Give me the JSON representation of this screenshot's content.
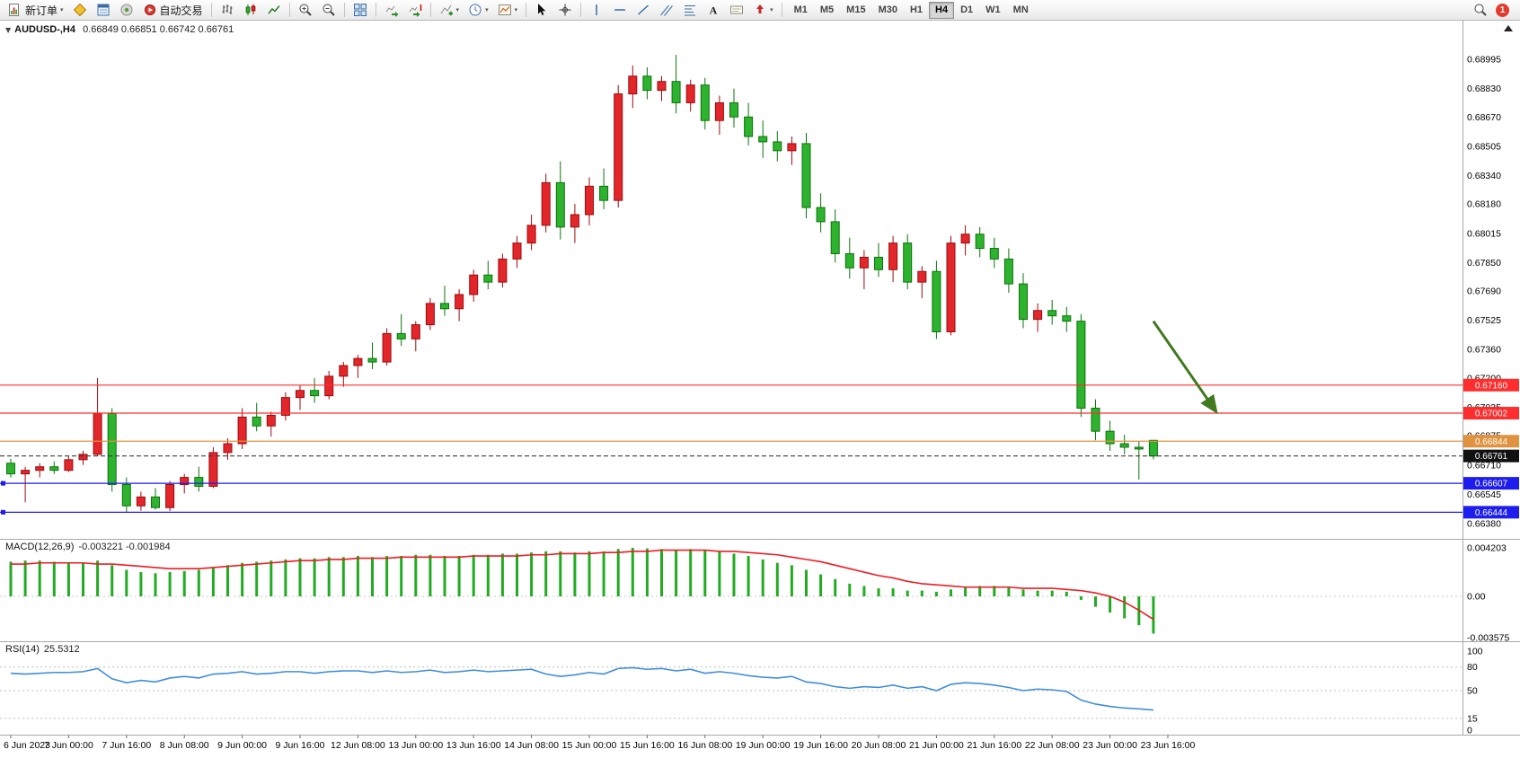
{
  "window": {
    "notification_count": "1"
  },
  "toolbar": {
    "new_order_label": "新订单",
    "auto_trading_label": "自动交易",
    "timeframes": [
      "M1",
      "M5",
      "M15",
      "M30",
      "H1",
      "H4",
      "D1",
      "W1",
      "MN"
    ],
    "active_timeframe": "H4",
    "icons": [
      "new-order",
      "market-watch",
      "data-window",
      "navigator",
      "auto-trading",
      "bars-chart",
      "candlestick-chart",
      "line-chart",
      "zoom-in",
      "zoom-out",
      "tile-windows",
      "auto-scroll",
      "chart-shift",
      "indicators",
      "periods",
      "templates",
      "cursor",
      "crosshair",
      "vertical-line",
      "horizontal-line",
      "trendline",
      "equidistant-channel",
      "fibonacci",
      "text",
      "text-label",
      "arrows",
      "search"
    ]
  },
  "chart_header": {
    "symbol": "AUDUSD-,H4",
    "ohlc": "0.66849 0.66851 0.66742 0.66761"
  },
  "chart_data": {
    "type": "candlestick",
    "symbol": "AUDUSD-",
    "timeframe": "H4",
    "colors": {
      "bull": "#e3262a",
      "bull_border": "#9c0b0e",
      "bear": "#2db32d",
      "bear_border": "#0d730d",
      "macd_hist": "#22ab22",
      "macd_signal": "#ee1c25",
      "rsi_line": "#3f8edc",
      "arrow": "#3f7a1e"
    },
    "x_labels": [
      "6 Jun 2023",
      "7 Jun 00:00",
      "7 Jun 16:00",
      "8 Jun 08:00",
      "9 Jun 00:00",
      "9 Jun 16:00",
      "12 Jun 08:00",
      "13 Jun 00:00",
      "13 Jun 16:00",
      "14 Jun 08:00",
      "15 Jun 00:00",
      "15 Jun 16:00",
      "16 Jun 08:00",
      "19 Jun 00:00",
      "19 Jun 16:00",
      "20 Jun 08:00",
      "21 Jun 00:00",
      "21 Jun 16:00",
      "22 Jun 08:00",
      "23 Jun 00:00",
      "23 Jun 16:00"
    ],
    "bars_per_label": 4,
    "price_axis_labels": [
      "0.68995",
      "0.68830",
      "0.68670",
      "0.68505",
      "0.68340",
      "0.68180",
      "0.68015",
      "0.67850",
      "0.67690",
      "0.67525",
      "0.67360",
      "0.67200",
      "0.67035",
      "0.66875",
      "0.66710",
      "0.66545",
      "0.66380"
    ],
    "candles": [
      [
        0.6672,
        0.66745,
        0.6664,
        0.6666
      ],
      [
        0.6666,
        0.667,
        0.665,
        0.6668
      ],
      [
        0.6668,
        0.6672,
        0.6664,
        0.667
      ],
      [
        0.667,
        0.6673,
        0.6666,
        0.6668
      ],
      [
        0.6668,
        0.6676,
        0.6667,
        0.6674
      ],
      [
        0.6674,
        0.6679,
        0.6671,
        0.6677
      ],
      [
        0.6677,
        0.672,
        0.6676,
        0.67
      ],
      [
        0.67,
        0.6703,
        0.6656,
        0.666
      ],
      [
        0.666,
        0.6664,
        0.66444,
        0.6648
      ],
      [
        0.6648,
        0.6656,
        0.66452,
        0.6653
      ],
      [
        0.6653,
        0.6658,
        0.66458,
        0.6647
      ],
      [
        0.6647,
        0.6662,
        0.6645,
        0.666
      ],
      [
        0.666,
        0.6666,
        0.6655,
        0.6664
      ],
      [
        0.6664,
        0.667,
        0.6656,
        0.6659
      ],
      [
        0.6659,
        0.6681,
        0.6658,
        0.6678
      ],
      [
        0.6678,
        0.6686,
        0.6674,
        0.6683
      ],
      [
        0.6683,
        0.6703,
        0.668,
        0.6698
      ],
      [
        0.6698,
        0.6706,
        0.669,
        0.6693
      ],
      [
        0.6693,
        0.6701,
        0.6687,
        0.6699
      ],
      [
        0.6699,
        0.6712,
        0.6696,
        0.6709
      ],
      [
        0.6709,
        0.6716,
        0.6702,
        0.6713
      ],
      [
        0.6713,
        0.672,
        0.6706,
        0.671
      ],
      [
        0.671,
        0.6724,
        0.6708,
        0.6721
      ],
      [
        0.6721,
        0.6729,
        0.6715,
        0.6727
      ],
      [
        0.6727,
        0.6733,
        0.672,
        0.6731
      ],
      [
        0.6731,
        0.674,
        0.6725,
        0.6729
      ],
      [
        0.6729,
        0.6748,
        0.6727,
        0.6745
      ],
      [
        0.6745,
        0.6756,
        0.6738,
        0.6742
      ],
      [
        0.6742,
        0.6752,
        0.6735,
        0.675
      ],
      [
        0.675,
        0.6765,
        0.6747,
        0.6762
      ],
      [
        0.6762,
        0.6772,
        0.6755,
        0.6759
      ],
      [
        0.6759,
        0.677,
        0.6752,
        0.6767
      ],
      [
        0.6767,
        0.6781,
        0.6763,
        0.6778
      ],
      [
        0.6778,
        0.6786,
        0.677,
        0.6774
      ],
      [
        0.6774,
        0.679,
        0.6771,
        0.6787
      ],
      [
        0.6787,
        0.68,
        0.6782,
        0.6796
      ],
      [
        0.6796,
        0.6812,
        0.6792,
        0.6806
      ],
      [
        0.6806,
        0.6835,
        0.6802,
        0.683
      ],
      [
        0.683,
        0.6842,
        0.6798,
        0.6805
      ],
      [
        0.6805,
        0.6818,
        0.6796,
        0.6812
      ],
      [
        0.6812,
        0.6833,
        0.6806,
        0.6828
      ],
      [
        0.6828,
        0.6838,
        0.6815,
        0.682
      ],
      [
        0.682,
        0.6885,
        0.6816,
        0.688
      ],
      [
        0.688,
        0.6896,
        0.6872,
        0.689
      ],
      [
        0.689,
        0.6895,
        0.6877,
        0.6882
      ],
      [
        0.6882,
        0.689,
        0.6876,
        0.6887
      ],
      [
        0.6887,
        0.6902,
        0.6869,
        0.6875
      ],
      [
        0.6875,
        0.6888,
        0.687,
        0.6885
      ],
      [
        0.6885,
        0.6889,
        0.686,
        0.6865
      ],
      [
        0.6865,
        0.6879,
        0.6857,
        0.6875
      ],
      [
        0.6875,
        0.6883,
        0.6861,
        0.6867
      ],
      [
        0.6867,
        0.6875,
        0.6851,
        0.6856
      ],
      [
        0.6856,
        0.6865,
        0.6844,
        0.6853
      ],
      [
        0.6853,
        0.6859,
        0.6842,
        0.6848
      ],
      [
        0.6848,
        0.6856,
        0.684,
        0.6852
      ],
      [
        0.6852,
        0.6858,
        0.681,
        0.6816
      ],
      [
        0.6816,
        0.6824,
        0.6802,
        0.6808
      ],
      [
        0.6808,
        0.6815,
        0.6785,
        0.679
      ],
      [
        0.679,
        0.6799,
        0.6776,
        0.6782
      ],
      [
        0.6782,
        0.6792,
        0.677,
        0.6788
      ],
      [
        0.6788,
        0.6796,
        0.6777,
        0.6781
      ],
      [
        0.6781,
        0.68,
        0.6774,
        0.6796
      ],
      [
        0.6796,
        0.6801,
        0.677,
        0.6774
      ],
      [
        0.6774,
        0.6783,
        0.6765,
        0.678
      ],
      [
        0.678,
        0.6786,
        0.6742,
        0.6746
      ],
      [
        0.6746,
        0.68,
        0.6744,
        0.6796
      ],
      [
        0.6796,
        0.6806,
        0.6789,
        0.6801
      ],
      [
        0.6801,
        0.6805,
        0.6788,
        0.6793
      ],
      [
        0.6793,
        0.6799,
        0.6782,
        0.6787
      ],
      [
        0.6787,
        0.6793,
        0.6768,
        0.6773
      ],
      [
        0.6773,
        0.6779,
        0.6748,
        0.6753
      ],
      [
        0.6753,
        0.6762,
        0.6746,
        0.6758
      ],
      [
        0.6758,
        0.6764,
        0.675,
        0.6755
      ],
      [
        0.6755,
        0.676,
        0.6746,
        0.6752
      ],
      [
        0.6752,
        0.6756,
        0.6698,
        0.6703
      ],
      [
        0.6703,
        0.6708,
        0.6685,
        0.669
      ],
      [
        0.669,
        0.6696,
        0.6679,
        0.6683
      ],
      [
        0.6683,
        0.6688,
        0.6677,
        0.6681
      ],
      [
        0.6681,
        0.66845,
        0.66628,
        0.668
      ],
      [
        0.66849,
        0.66851,
        0.66742,
        0.66761
      ]
    ],
    "hlines": [
      {
        "price": 0.6716,
        "label": "0.67160",
        "color": "#ff2d2d",
        "style": "solid"
      },
      {
        "price": 0.67002,
        "label": "0.67002",
        "color": "#ff2d2d",
        "style": "solid"
      },
      {
        "price": 0.66844,
        "label": "0.66844",
        "color": "#e0923f",
        "style": "solid"
      },
      {
        "price": 0.66761,
        "label": "0.66761",
        "color": "#3c3c3c",
        "style": "dashed",
        "badge": "#111111",
        "role": "current-price"
      },
      {
        "price": 0.66607,
        "label": "0.66607",
        "color": "#1d1df0",
        "style": "solid",
        "handle": true
      },
      {
        "price": 0.66444,
        "label": "0.66444",
        "color": "#1d1df0",
        "style": "solid",
        "handle": true
      }
    ],
    "arrow": {
      "from": {
        "bar": 79,
        "price": 0.6752
      },
      "to": {
        "bar": 83.3,
        "price": 0.67015
      }
    },
    "macd": {
      "name": "MACD(12,26,9)",
      "values_text": "-0.003221 -0.001984",
      "axis_labels": [
        "0.004203",
        "0.00",
        "-0.003575"
      ],
      "histogram": [
        0.003,
        0.0031,
        0.0031,
        0.003,
        0.0029,
        0.0029,
        0.0031,
        0.0027,
        0.0023,
        0.0021,
        0.002,
        0.0021,
        0.0022,
        0.0023,
        0.0025,
        0.0027,
        0.0029,
        0.003,
        0.0031,
        0.0032,
        0.0033,
        0.0033,
        0.0034,
        0.0034,
        0.0035,
        0.0034,
        0.0035,
        0.0035,
        0.0036,
        0.0036,
        0.0035,
        0.0035,
        0.0036,
        0.0036,
        0.0037,
        0.0037,
        0.0038,
        0.0039,
        0.0039,
        0.0038,
        0.0039,
        0.0039,
        0.0041,
        0.0042,
        0.00415,
        0.0041,
        0.004,
        0.0041,
        0.004,
        0.0039,
        0.0037,
        0.0035,
        0.0032,
        0.0029,
        0.0027,
        0.0023,
        0.0019,
        0.0015,
        0.0011,
        0.0009,
        0.0007,
        0.0007,
        0.0005,
        0.0005,
        0.0004,
        0.0006,
        0.0008,
        0.0009,
        0.0009,
        0.0008,
        0.0006,
        0.0005,
        0.0005,
        0.0004,
        -0.0003,
        -0.0009,
        -0.0014,
        -0.0019,
        -0.0025,
        -0.003221
      ],
      "signal": [
        0.0028,
        0.0028,
        0.0029,
        0.0029,
        0.0029,
        0.0029,
        0.0028,
        0.0028,
        0.0027,
        0.0026,
        0.0025,
        0.0024,
        0.0024,
        0.0024,
        0.0025,
        0.0026,
        0.0027,
        0.0028,
        0.0029,
        0.003,
        0.0031,
        0.0031,
        0.0032,
        0.0032,
        0.0033,
        0.0033,
        0.0033,
        0.0034,
        0.0034,
        0.0034,
        0.0034,
        0.0034,
        0.0035,
        0.0035,
        0.0035,
        0.0035,
        0.0036,
        0.0036,
        0.0037,
        0.0037,
        0.0037,
        0.0038,
        0.0038,
        0.0039,
        0.0039,
        0.004,
        0.004,
        0.004,
        0.004,
        0.0039,
        0.0039,
        0.0038,
        0.0037,
        0.0036,
        0.0034,
        0.0032,
        0.003,
        0.0027,
        0.0024,
        0.0021,
        0.0018,
        0.0016,
        0.0013,
        0.0011,
        0.001,
        0.0009,
        0.0008,
        0.0008,
        0.0008,
        0.0008,
        0.0007,
        0.0007,
        0.0007,
        0.0006,
        0.0005,
        0.0003,
        0.0,
        -0.0005,
        -0.0012,
        -0.001984
      ]
    },
    "rsi": {
      "name": "RSI(14)",
      "value_text": "25.5312",
      "axis_labels": [
        "100",
        "80",
        "50",
        "15",
        "0"
      ],
      "levels": [
        80,
        50,
        15
      ],
      "values": [
        72,
        71,
        72,
        73,
        73,
        74,
        78,
        65,
        60,
        63,
        61,
        66,
        68,
        66,
        71,
        72,
        74,
        71,
        72,
        74,
        74,
        72,
        74,
        75,
        75,
        73,
        75,
        73,
        74,
        76,
        73,
        74,
        76,
        74,
        75,
        76,
        77,
        71,
        68,
        70,
        73,
        71,
        78,
        79,
        77,
        78,
        75,
        77,
        72,
        74,
        72,
        69,
        67,
        66,
        68,
        61,
        59,
        55,
        53,
        55,
        54,
        57,
        53,
        55,
        50,
        58,
        60,
        59,
        57,
        54,
        50,
        52,
        51,
        49,
        38,
        33,
        30,
        28,
        27,
        25.5312
      ]
    }
  }
}
